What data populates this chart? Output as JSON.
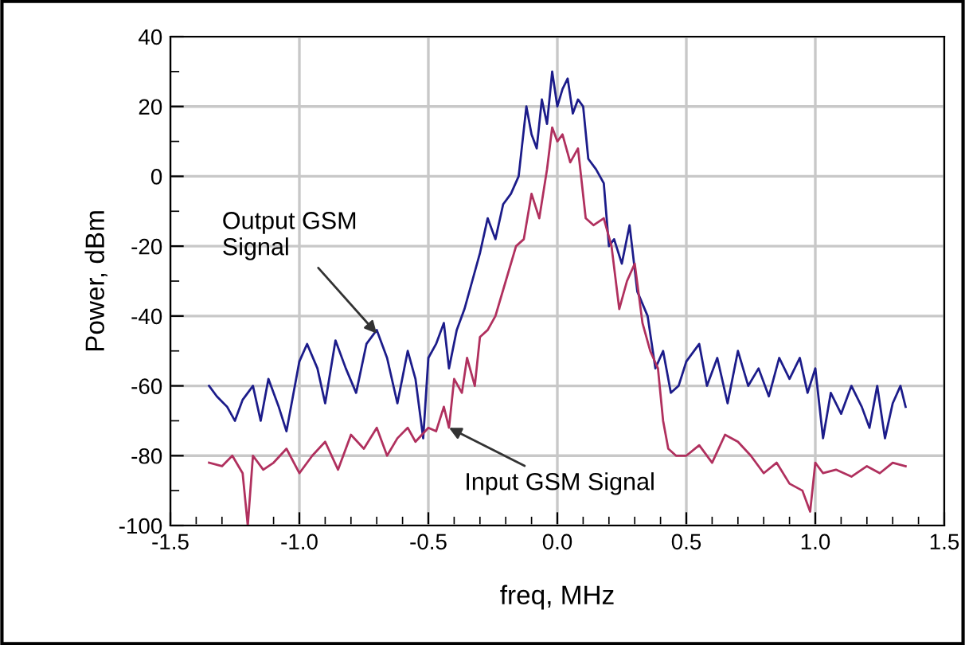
{
  "chart_data": {
    "type": "line",
    "xlabel": "freq, MHz",
    "ylabel": "Power, dBm",
    "xlim": [
      -1.5,
      1.5
    ],
    "xticks": [
      {
        "value": -1.5,
        "label": "-1.5"
      },
      {
        "value": -1.0,
        "label": "-1.0"
      },
      {
        "value": -0.5,
        "label": "-0.5"
      },
      {
        "value": 0.0,
        "label": "0.0"
      },
      {
        "value": 0.5,
        "label": "0.5"
      },
      {
        "value": 1.0,
        "label": "1.0"
      },
      {
        "value": 1.5,
        "label": "1.5"
      }
    ],
    "ylim": [
      -100,
      40
    ],
    "yticks": [
      -100,
      -80,
      -60,
      -40,
      -20,
      0,
      20,
      40
    ],
    "grid": true,
    "legend": false,
    "marker": "none",
    "line_style": "solid",
    "series": [
      {
        "color": "#1c1c8a",
        "x": [
          -1.35,
          -1.32,
          -1.28,
          -1.25,
          -1.22,
          -1.18,
          -1.15,
          -1.12,
          -1.08,
          -1.05,
          -1.0,
          -0.97,
          -0.93,
          -0.9,
          -0.86,
          -0.82,
          -0.78,
          -0.74,
          -0.7,
          -0.66,
          -0.62,
          -0.58,
          -0.55,
          -0.52,
          -0.5,
          -0.47,
          -0.44,
          -0.42,
          -0.39,
          -0.36,
          -0.33,
          -0.3,
          -0.27,
          -0.24,
          -0.21,
          -0.18,
          -0.15,
          -0.12,
          -0.1,
          -0.08,
          -0.06,
          -0.04,
          -0.02,
          0.0,
          0.02,
          0.04,
          0.06,
          0.08,
          0.1,
          0.12,
          0.15,
          0.18,
          0.2,
          0.22,
          0.25,
          0.28,
          0.31,
          0.35,
          0.38,
          0.41,
          0.44,
          0.47,
          0.5,
          0.55,
          0.58,
          0.62,
          0.66,
          0.7,
          0.74,
          0.78,
          0.82,
          0.86,
          0.9,
          0.94,
          0.97,
          1.0,
          1.03,
          1.06,
          1.1,
          1.14,
          1.18,
          1.21,
          1.24,
          1.27,
          1.3,
          1.33,
          1.35
        ],
        "values": [
          -60,
          -63,
          -66,
          -70,
          -64,
          -60,
          -70,
          -58,
          -66,
          -73,
          -53,
          -48,
          -55,
          -65,
          -47,
          -55,
          -62,
          -48,
          -44,
          -52,
          -65,
          -50,
          -58,
          -75,
          -52,
          -48,
          -42,
          -55,
          -44,
          -38,
          -30,
          -22,
          -12,
          -18,
          -8,
          -5,
          0,
          20,
          12,
          8,
          22,
          15,
          30,
          20,
          25,
          28,
          18,
          22,
          20,
          5,
          2,
          -2,
          -20,
          -18,
          -25,
          -14,
          -33,
          -40,
          -55,
          -50,
          -62,
          -60,
          -53,
          -48,
          -60,
          -52,
          -65,
          -50,
          -60,
          -55,
          -63,
          -52,
          -58,
          -52,
          -62,
          -55,
          -75,
          -62,
          -68,
          -60,
          -66,
          -72,
          -60,
          -75,
          -65,
          -60,
          -66
        ]
      },
      {
        "color": "#b0305e",
        "x": [
          -1.35,
          -1.3,
          -1.26,
          -1.22,
          -1.2,
          -1.18,
          -1.14,
          -1.1,
          -1.05,
          -1.0,
          -0.95,
          -0.9,
          -0.85,
          -0.8,
          -0.75,
          -0.7,
          -0.66,
          -0.62,
          -0.58,
          -0.55,
          -0.5,
          -0.47,
          -0.44,
          -0.42,
          -0.4,
          -0.37,
          -0.35,
          -0.32,
          -0.3,
          -0.27,
          -0.24,
          -0.2,
          -0.16,
          -0.13,
          -0.1,
          -0.07,
          -0.04,
          -0.02,
          0.0,
          0.02,
          0.05,
          0.08,
          0.11,
          0.14,
          0.18,
          0.21,
          0.24,
          0.27,
          0.3,
          0.33,
          0.36,
          0.39,
          0.41,
          0.43,
          0.46,
          0.5,
          0.55,
          0.6,
          0.65,
          0.7,
          0.75,
          0.8,
          0.85,
          0.9,
          0.95,
          0.98,
          1.0,
          1.03,
          1.08,
          1.14,
          1.2,
          1.25,
          1.3,
          1.35
        ],
        "values": [
          -82,
          -83,
          -80,
          -85,
          -100,
          -80,
          -84,
          -82,
          -78,
          -85,
          -80,
          -76,
          -84,
          -74,
          -78,
          -72,
          -80,
          -75,
          -72,
          -76,
          -72,
          -73,
          -66,
          -72,
          -58,
          -62,
          -52,
          -60,
          -46,
          -44,
          -40,
          -30,
          -20,
          -18,
          -5,
          -12,
          2,
          14,
          10,
          12,
          4,
          8,
          -12,
          -14,
          -12,
          -20,
          -38,
          -30,
          -25,
          -42,
          -50,
          -55,
          -70,
          -78,
          -80,
          -80,
          -77,
          -82,
          -74,
          -76,
          -80,
          -85,
          -82,
          -88,
          -90,
          -96,
          -82,
          -85,
          -84,
          -86,
          -83,
          -85,
          -82,
          -83
        ]
      }
    ],
    "annotations": [
      {
        "text": "Output GSM\nSignal",
        "x": -0.7,
        "y": -45
      },
      {
        "text": "Input GSM Signal",
        "x": -0.42,
        "y": -72
      }
    ]
  }
}
